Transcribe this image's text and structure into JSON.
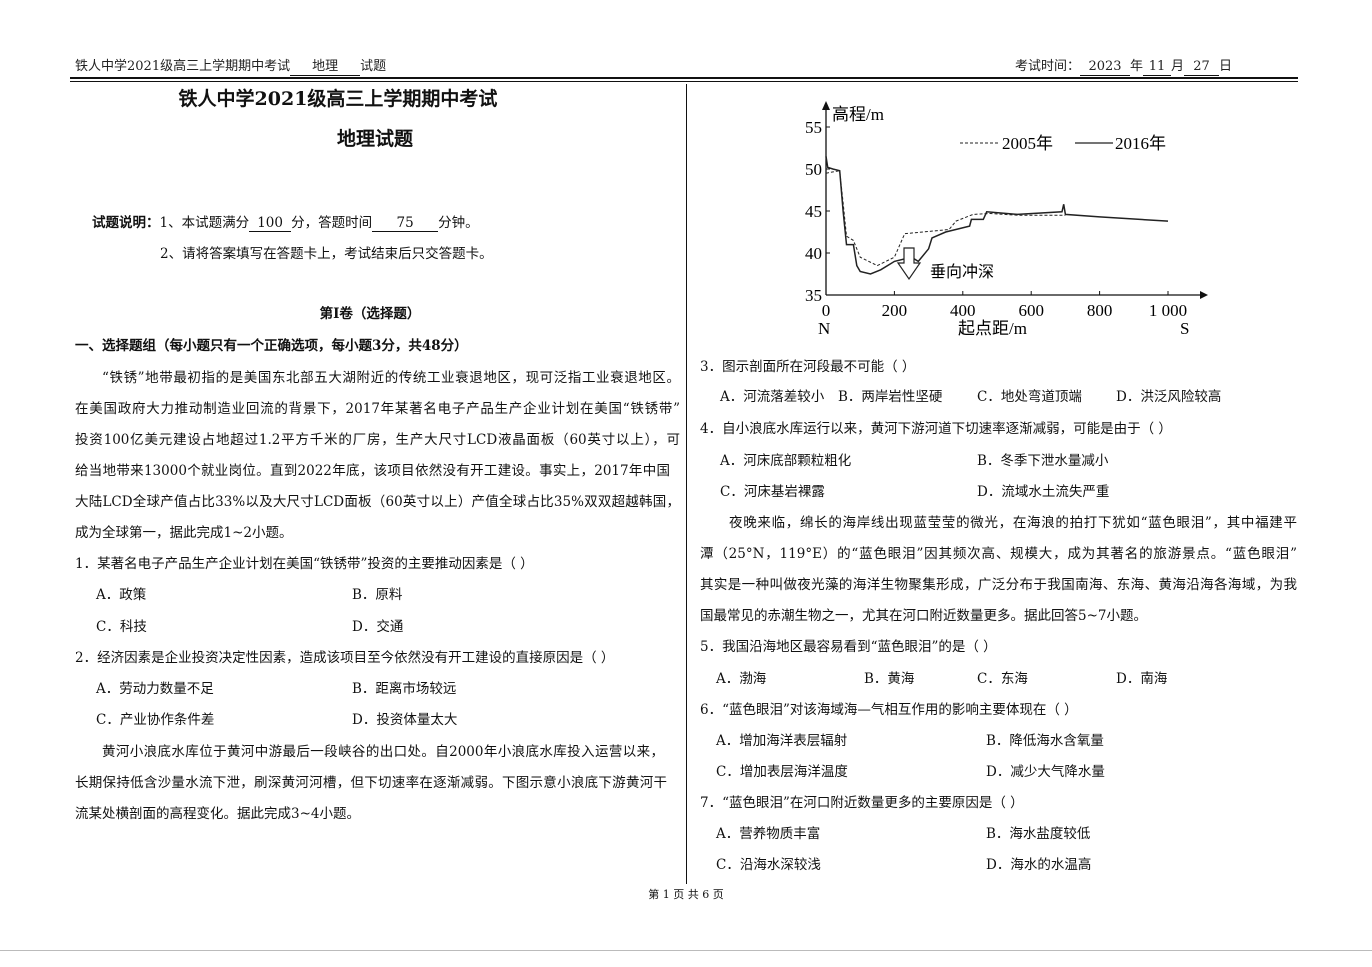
{
  "header": {
    "left_prefix": "铁人中学2021级高三上学期期中考试",
    "subject": "地理",
    "left_suffix": "试题",
    "time_label": "考试时间：",
    "year": "2023",
    "year_unit": "年",
    "month": "11",
    "month_unit": "月",
    "day": "27",
    "day_unit": "日"
  },
  "title": {
    "line1": "铁人中学2021级高三上学期期中考试",
    "line2": "地理试题"
  },
  "instructions": {
    "label": "试题说明：",
    "item1_a": "1、本试题满分",
    "score": "100",
    "item1_b": "分，答题时间",
    "minutes": "75",
    "item1_c": "分钟。",
    "item2": "2、请将答案填写在答题卡上，考试结束后只交答题卡。"
  },
  "section": {
    "title": "第Ⅰ卷（选择题）",
    "group": "一、选择题组（每小题只有一个正确选项，每小题3分，共48分）"
  },
  "passage1": [
    "“铁锈”地带最初指的是美国东北部五大湖附近的传统工业衰退地区，现可泛指工业衰退地区。",
    "在美国政府大力推动制造业回流的背景下，2017年某著名电子产品生产企业计划在美国“铁锈带”",
    "投资100亿美元建设占地超过1.2平方千米的厂房，生产大尺寸LCD液晶面板（60英寸以上），可",
    "给当地带来13000个就业岗位。直到2022年底，该项目依然没有开工建设。事实上，2017年中国",
    "大陆LCD全球产值占比33%以及大尺寸LCD面板（60英寸以上）产值全球占比35%双双超越韩国，",
    "成为全球第一，据此完成1~2小题。"
  ],
  "q1": {
    "stem": "1．某著名电子产品生产企业计划在美国“铁锈带”投资的主要推动因素是（          ）",
    "options": [
      "A．政策",
      "B．原料",
      "C．科技",
      "D．交通"
    ]
  },
  "q2": {
    "stem": "2．经济因素是企业投资决定性因素，造成该项目至今依然没有开工建设的直接原因是（          ）",
    "options": [
      "A．劳动力数量不足",
      "B．距离市场较远",
      "C．产业协作条件差",
      "D．投资体量太大"
    ]
  },
  "passage2": [
    "黄河小浪底水库位于黄河中游最后一段峡谷的出口处。自2000年小浪底水库投入运营以来，",
    "长期保持低含沙量水流下泄，刷深黄河河槽，但下切速率在逐渐减弱。下图示意小浪底下游黄河干",
    "流某处横剖面的高程变化。据此完成3~4小题。"
  ],
  "chart_data": {
    "type": "line",
    "ylabel": "高程/m",
    "xlabel": "起点距/m",
    "x_left_label": "N",
    "x_right_label": "S",
    "annotation": "垂向冲深",
    "xlim": [
      0,
      1000
    ],
    "ylim": [
      35,
      55
    ],
    "x_ticks": [
      "0",
      "200",
      "400",
      "600",
      "800",
      "1 000"
    ],
    "y_ticks": [
      "35",
      "40",
      "45",
      "50",
      "55"
    ],
    "legend_position": "top-right",
    "series": [
      {
        "name": "2005年",
        "style": "dashed",
        "points": [
          [
            0,
            49.5
          ],
          [
            40,
            49.8
          ],
          [
            50,
            46
          ],
          [
            60,
            42
          ],
          [
            80,
            41.5
          ],
          [
            100,
            39.5
          ],
          [
            150,
            38.5
          ],
          [
            200,
            39.5
          ],
          [
            230,
            42.3
          ],
          [
            360,
            42.8
          ],
          [
            380,
            43.8
          ],
          [
            430,
            44.6
          ],
          [
            480,
            44.7
          ],
          [
            560,
            44.5
          ],
          [
            700,
            44.5
          ]
        ]
      },
      {
        "name": "2016年",
        "style": "solid",
        "points": [
          [
            0,
            51.5
          ],
          [
            5,
            50.2
          ],
          [
            20,
            50
          ],
          [
            40,
            49.8
          ],
          [
            50,
            45
          ],
          [
            60,
            41
          ],
          [
            80,
            41
          ],
          [
            90,
            38.5
          ],
          [
            100,
            37.8
          ],
          [
            130,
            37.5
          ],
          [
            160,
            38
          ],
          [
            200,
            39
          ],
          [
            250,
            39.5
          ],
          [
            270,
            39
          ],
          [
            300,
            40.5
          ],
          [
            310,
            41.8
          ],
          [
            350,
            42.5
          ],
          [
            420,
            43.2
          ],
          [
            425,
            44
          ],
          [
            460,
            44
          ],
          [
            470,
            44.9
          ],
          [
            560,
            44.6
          ],
          [
            690,
            44.9
          ],
          [
            695,
            45.8
          ],
          [
            700,
            44.6
          ],
          [
            800,
            44.3
          ],
          [
            1000,
            43.8
          ]
        ]
      }
    ]
  },
  "q3": {
    "stem": "3．图示剖面所在河段最不可能（          ）",
    "options": [
      "A．河流落差较小",
      "B．两岸岩性坚硬",
      "C．地处弯道顶端",
      "D．洪泛风险较高"
    ]
  },
  "q4": {
    "stem": "4．自小浪底水库运行以来，黄河下游河道下切速率逐渐减弱，可能是由于（          ）",
    "options": [
      "A．河床底部颗粒粗化",
      "B．冬季下泄水量减小",
      "C．河床基岩裸露",
      "D．流域水土流失严重"
    ]
  },
  "passage3": [
    "夜晚来临，绵长的海岸线出现蓝莹莹的微光，在海浪的拍打下犹如“蓝色眼泪”，其中福建平",
    "潭（25°N，119°E）的“蓝色眼泪”因其频次高、规模大，成为其著名的旅游景点。“蓝色眼泪”",
    "其实是一种叫做夜光藻的海洋生物聚集形成，广泛分布于我国南海、东海、黄海沿海各海域，为我",
    "国最常见的赤潮生物之一，尤其在河口附近数量更多。据此回答5~7小题。"
  ],
  "q5": {
    "stem": "5．我国沿海地区最容易看到“蓝色眼泪”的是（          ）",
    "options": [
      "A．渤海",
      "B．黄海",
      "C．东海",
      "D．南海"
    ]
  },
  "q6": {
    "stem": "6．“蓝色眼泪”对该海域海—气相互作用的影响主要体现在（          ）",
    "options": [
      "A．增加海洋表层辐射",
      "B．降低海水含氧量",
      "C．增加表层海洋温度",
      "D．减少大气降水量"
    ]
  },
  "q7": {
    "stem": "7．“蓝色眼泪”在河口附近数量更多的主要原因是（          ）",
    "options": [
      "A．营养物质丰富",
      "B．海水盐度较低",
      "C．沿海水深较浅",
      "D．海水的水温高"
    ]
  },
  "footer": {
    "page": "第 1 页 共 6 页"
  }
}
